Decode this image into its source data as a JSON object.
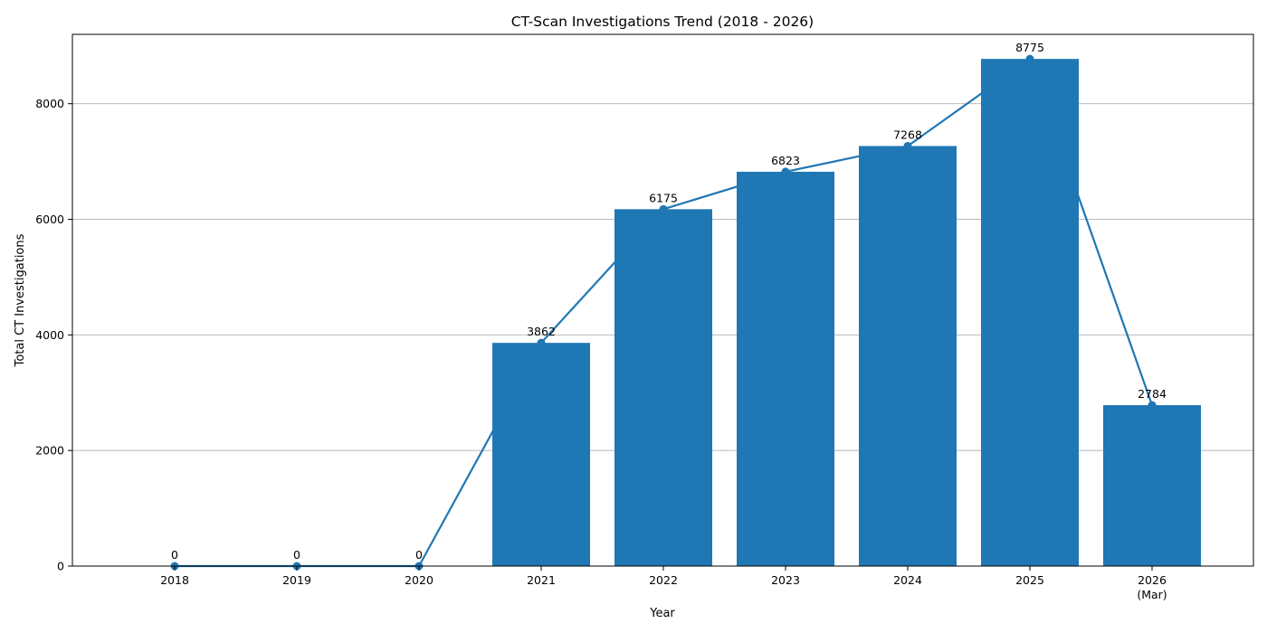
{
  "chart_data": {
    "type": "bar",
    "title": "CT-Scan Investigations Trend (2018 - 2026)",
    "xlabel": "Year",
    "ylabel": "Total CT Investigations",
    "categories": [
      "2018",
      "2019",
      "2020",
      "2021",
      "2022",
      "2023",
      "2024",
      "2025",
      "2026\n(Mar)"
    ],
    "values": [
      0,
      0,
      0,
      3862,
      6175,
      6823,
      7268,
      8775,
      2784
    ],
    "overlay_line": {
      "values": [
        0,
        0,
        0,
        3862,
        6175,
        6823,
        7268,
        8775,
        2784
      ],
      "markers": true
    },
    "data_labels": [
      "0",
      "0",
      "0",
      "3862",
      "6175",
      "6823",
      "7268",
      "8775",
      "2784"
    ],
    "ylim": [
      0,
      9200
    ],
    "yticks": [
      0,
      2000,
      4000,
      6000,
      8000
    ],
    "ytick_labels": [
      "0",
      "2000",
      "4000",
      "6000",
      "8000"
    ],
    "grid": "horizontal",
    "legend": "none",
    "colors": {
      "bar": "#1f77b4",
      "line": "#1f77b4",
      "grid": "#b0b0b0",
      "axis": "#000000"
    }
  }
}
